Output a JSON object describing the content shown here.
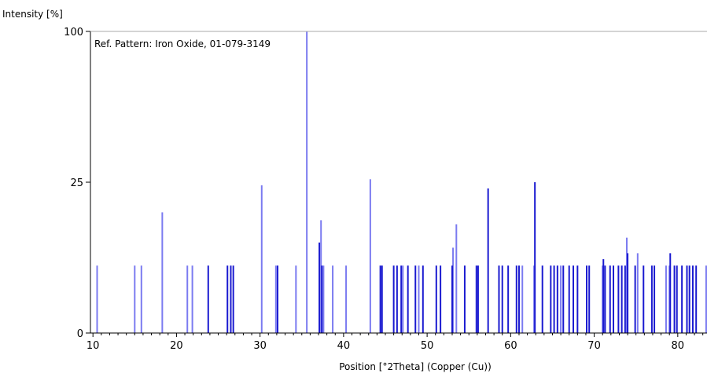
{
  "chart_data": {
    "type": "bar",
    "title": "",
    "annotation": "Ref. Pattern: Iron Oxide, 01-079-3149",
    "xlabel": "Position [°2Theta] (Copper (Cu))",
    "ylabel": "Intensity [%]",
    "xlim": [
      9.7,
      83.5
    ],
    "ylim_display": [
      "0",
      "25",
      "100"
    ],
    "x_ticks": [
      10,
      20,
      30,
      40,
      50,
      60,
      70,
      80
    ],
    "y_ticks": [
      0,
      25,
      100
    ],
    "y_scale": "sqrt",
    "grid": false,
    "colors": {
      "light": "#7b7bf0",
      "dark": "#1a1ad0"
    },
    "series": [
      {
        "shade": "light",
        "x": [
          10.5,
          15.0,
          15.8,
          18.3,
          21.3,
          21.9,
          30.2,
          31.9,
          34.3,
          35.6,
          37.3,
          37.6,
          38.7,
          40.3,
          43.2,
          47.1,
          49.0,
          53.1,
          53.5,
          61.4,
          62.8,
          66.0,
          71.0,
          73.9,
          75.2,
          78.6,
          79.0,
          83.4
        ],
        "values": [
          5,
          5,
          5,
          16,
          5,
          5,
          24,
          5,
          5,
          100,
          14,
          5,
          5,
          5,
          26,
          5,
          5,
          8,
          13,
          5,
          5,
          5,
          5,
          10,
          7,
          5,
          5,
          5
        ]
      },
      {
        "shade": "dark",
        "x": [
          23.8,
          26.1,
          26.5,
          26.8,
          32.1,
          37.1,
          37.4,
          44.4,
          44.6,
          46.0,
          46.4,
          46.9,
          47.7,
          48.6,
          49.5,
          51.1,
          51.6,
          53.0,
          54.5,
          55.9,
          56.1,
          57.3,
          58.6,
          59.0,
          59.7,
          60.7,
          61.0,
          62.9,
          63.8,
          64.8,
          65.2,
          65.6,
          66.3,
          67.0,
          67.5,
          68.0,
          69.1,
          69.4,
          71.1,
          71.3,
          71.9,
          72.3,
          72.9,
          73.3,
          73.7,
          74.0,
          74.9,
          75.9,
          76.9,
          77.2,
          79.1,
          79.6,
          79.9,
          80.5,
          81.1,
          81.4,
          81.8,
          82.2
        ],
        "values": [
          5,
          5,
          5,
          5,
          5,
          9,
          5,
          5,
          5,
          5,
          5,
          5,
          5,
          5,
          5,
          5,
          5,
          5,
          5,
          5,
          5,
          23,
          5,
          5,
          5,
          5,
          5,
          25,
          5,
          5,
          5,
          5,
          5,
          5,
          5,
          5,
          5,
          5,
          6,
          5,
          5,
          5,
          5,
          5,
          5,
          7,
          5,
          5,
          5,
          5,
          7,
          5,
          5,
          5,
          5,
          5,
          5,
          5
        ]
      }
    ]
  }
}
